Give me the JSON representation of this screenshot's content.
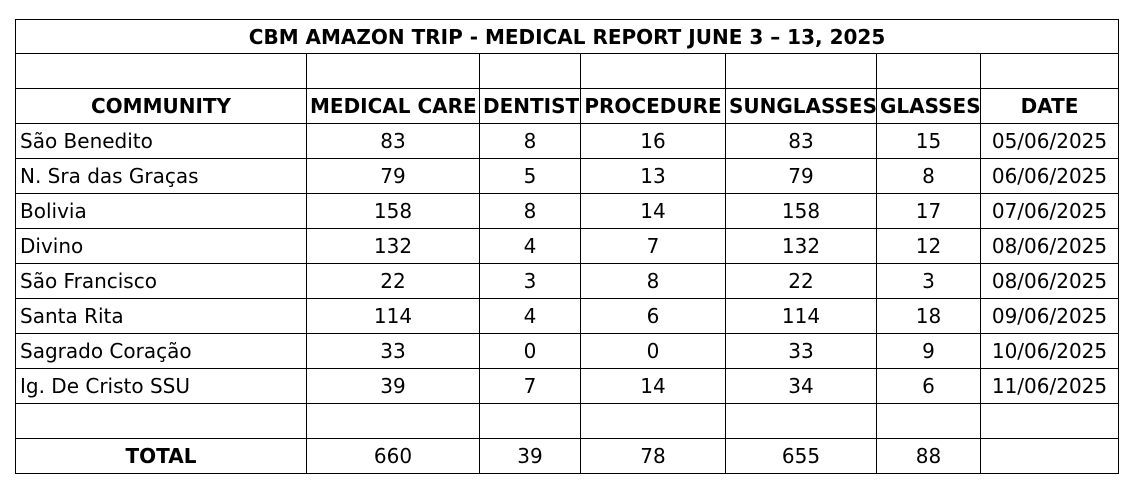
{
  "title": "CBM AMAZON TRIP  - MEDICAL REPORT  JUNE 3 – 13, 2025",
  "columns": [
    "COMMUNITY",
    "MEDICAL CARE",
    "DENTIST",
    "PROCEDURE",
    "SUNGLASSES",
    "GLASSES",
    "DATE"
  ],
  "rows": [
    {
      "community": "São Benedito",
      "medical_care": "83",
      "dentist": "8",
      "procedure": "16",
      "sunglasses": "83",
      "glasses": "15",
      "date": "05/06/2025"
    },
    {
      "community": "N. Sra das Graças",
      "medical_care": "79",
      "dentist": "5",
      "procedure": "13",
      "sunglasses": "79",
      "glasses": "8",
      "date": "06/06/2025"
    },
    {
      "community": "Bolivia",
      "medical_care": "158",
      "dentist": "8",
      "procedure": "14",
      "sunglasses": "158",
      "glasses": "17",
      "date": "07/06/2025"
    },
    {
      "community": "Divino",
      "medical_care": "132",
      "dentist": "4",
      "procedure": "7",
      "sunglasses": "132",
      "glasses": "12",
      "date": "08/06/2025"
    },
    {
      "community": "São Francisco",
      "medical_care": "22",
      "dentist": "3",
      "procedure": "8",
      "sunglasses": "22",
      "glasses": "3",
      "date": "08/06/2025"
    },
    {
      "community": "Santa Rita",
      "medical_care": "114",
      "dentist": "4",
      "procedure": "6",
      "sunglasses": "114",
      "glasses": "18",
      "date": "09/06/2025"
    },
    {
      "community": "Sagrado Coração",
      "medical_care": "33",
      "dentist": "0",
      "procedure": "0",
      "sunglasses": "33",
      "glasses": "9",
      "date": "10/06/2025"
    },
    {
      "community": "Ig. De Cristo SSU",
      "medical_care": "39",
      "dentist": "7",
      "procedure": "14",
      "sunglasses": "34",
      "glasses": "6",
      "date": "11/06/2025"
    }
  ],
  "total": {
    "label": "TOTAL",
    "medical_care": "660",
    "dentist": "39",
    "procedure": "78",
    "sunglasses": "655",
    "glasses": "88"
  }
}
